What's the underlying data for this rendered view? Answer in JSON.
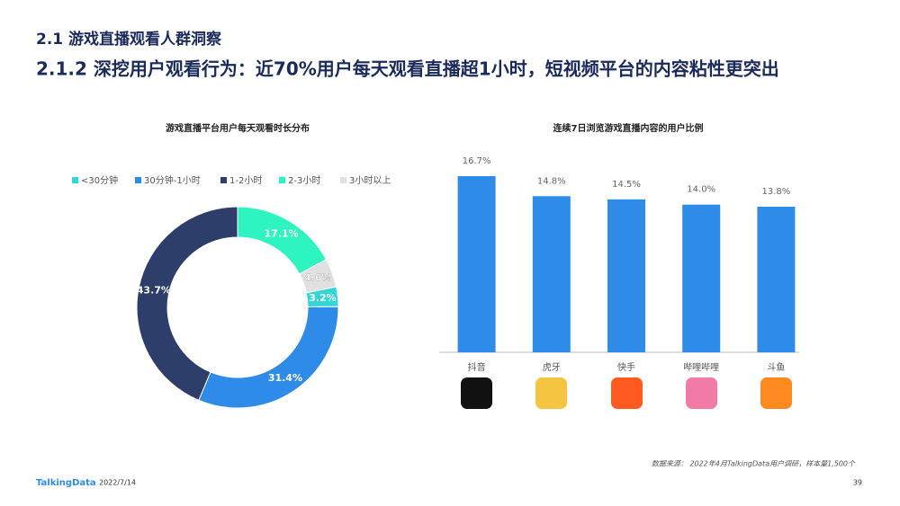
{
  "header": {
    "section": "2.1 游戏直播观看人群洞察",
    "title": "2.1.2 深挖用户观看行为：近70%用户每天观看直播超1小时，短视频平台的内容粘性更突出"
  },
  "chart_data": [
    {
      "type": "donut",
      "title": "游戏直播平台用户每天观看时长分布",
      "categories": [
        "<30分钟",
        "30分钟-1小时",
        "1-2小时",
        "2-3小时",
        "3小时以上"
      ],
      "values": [
        3.2,
        31.4,
        43.7,
        17.1,
        4.6
      ],
      "value_labels": [
        "3.2%",
        "31.4%",
        "43.7%",
        "17.1%",
        "4.6%"
      ],
      "colors": [
        "#33d6d6",
        "#2e8be8",
        "#2d3e6b",
        "#2ef5c0",
        "#e0e0e0"
      ],
      "legend": "top"
    },
    {
      "type": "bar",
      "title": "连续7日浏览游戏直播内容的用户比例",
      "categories": [
        "抖音",
        "虎牙",
        "快手",
        "哔哩哔哩",
        "斗鱼"
      ],
      "values": [
        16.7,
        14.8,
        14.5,
        14.0,
        13.8
      ],
      "value_labels": [
        "16.7%",
        "14.8%",
        "14.5%",
        "14.0%",
        "13.8%"
      ],
      "color": "#2e8be8"
    }
  ],
  "footer": {
    "source": "数据来源： 2022年4月TalkingData用户调研，样本量1,500个",
    "brand": "TalkingData",
    "date": "2022/7/14",
    "page": "39"
  }
}
